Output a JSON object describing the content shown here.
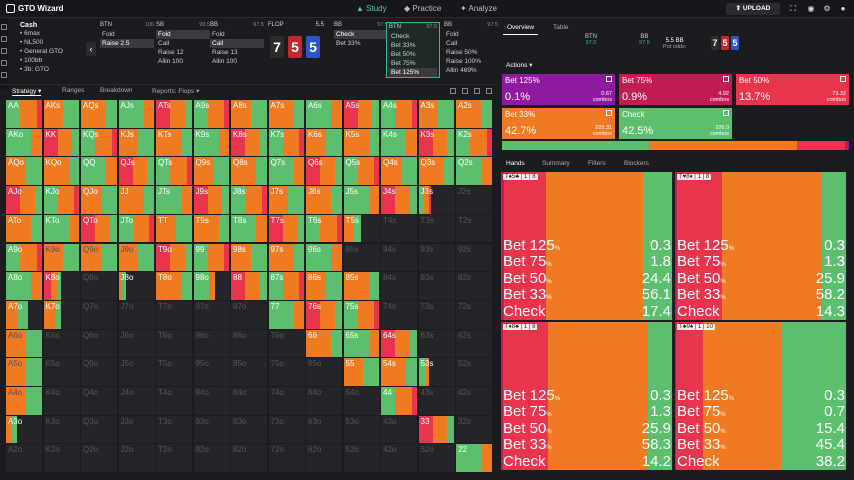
{
  "app": {
    "title": "GTO Wizard",
    "upload_label": "UPLOAD"
  },
  "nav": {
    "study": "Study",
    "practice": "Practice",
    "analyze": "Analyze"
  },
  "context": {
    "title": "Cash",
    "items": [
      "6max",
      "NL500",
      "General GTO",
      "100bb",
      "3b: GTO"
    ]
  },
  "action_cols": [
    {
      "pos": "BTN",
      "num": "100",
      "items": [
        "Fold",
        "Raise 2.5"
      ],
      "sel": 1
    },
    {
      "pos": "SB",
      "num": "99.5",
      "items": [
        "Fold",
        "Call",
        "Raise 12",
        "Allin 100"
      ],
      "sel": 0
    },
    {
      "pos": "BB",
      "num": "97.5",
      "items": [
        "Fold",
        "Call",
        "Raise 13",
        "Allin 100"
      ],
      "sel": 1
    },
    {
      "pos": "BB",
      "num": "97.5",
      "items": [
        "Check",
        "Bet 33%"
      ],
      "sel": 0
    },
    {
      "pos": "BTN",
      "num": "97.5",
      "items": [
        "Check",
        "Bet 33%",
        "Bet 50%",
        "Bet 75%",
        "Bet 125%"
      ],
      "sel": 4
    },
    {
      "pos": "BB",
      "num": "97.5",
      "items": [
        "Fold",
        "Call",
        "Raise 50%",
        "Raise 100%",
        "Allin 469%"
      ],
      "sel": -1
    }
  ],
  "flop": {
    "label": "FLOP",
    "num": "5.5",
    "cards": [
      {
        "r": "7",
        "c": "#2c2c2c"
      },
      {
        "r": "5",
        "c": "#c0282e"
      },
      {
        "r": "5",
        "c": "#2d54c8"
      }
    ]
  },
  "subtabs": [
    "Strategy",
    "Ranges",
    "Breakdown",
    "Reports: Flops"
  ],
  "grid_rows": [
    [
      "AA",
      "AKs",
      "AQs",
      "AJs",
      "ATs",
      "A9s",
      "A8s",
      "A7s",
      "A6s",
      "A5s",
      "A4s",
      "A3s",
      "A2s"
    ],
    [
      "AKo",
      "KK",
      "KQs",
      "KJs",
      "KTs",
      "K9s",
      "K8s",
      "K7s",
      "K6s",
      "K5s",
      "K4s",
      "K3s",
      "K2s"
    ],
    [
      "AQo",
      "KQo",
      "QQ",
      "QJs",
      "QTs",
      "Q9s",
      "Q8s",
      "Q7s",
      "Q6s",
      "Q5s",
      "Q4s",
      "Q3s",
      "Q2s"
    ],
    [
      "AJo",
      "KJo",
      "QJo",
      "JJ",
      "JTs",
      "J9s",
      "J8s",
      "J7s",
      "J6s",
      "J5s",
      "J4s",
      "J3s",
      "J2s"
    ],
    [
      "ATo",
      "KTo",
      "QTo",
      "JTo",
      "TT",
      "T9s",
      "T8s",
      "T7s",
      "T6s",
      "T5s",
      "T4s",
      "T3s",
      "T2s"
    ],
    [
      "A9o",
      "K9o",
      "Q9o",
      "J9o",
      "T9o",
      "99",
      "98s",
      "97s",
      "96s",
      "95s",
      "94s",
      "93s",
      "92s"
    ],
    [
      "A8o",
      "K8o",
      "Q8o",
      "J8o",
      "T8o",
      "98o",
      "88",
      "87s",
      "86s",
      "85s",
      "84s",
      "83s",
      "82s"
    ],
    [
      "A7o",
      "K7o",
      "Q7o",
      "J7o",
      "T7o",
      "97o",
      "87o",
      "77",
      "76s",
      "75s",
      "74s",
      "73s",
      "72s"
    ],
    [
      "A6o",
      "K6o",
      "Q6o",
      "J6o",
      "T6o",
      "96o",
      "86o",
      "76o",
      "66",
      "65s",
      "64s",
      "63s",
      "62s"
    ],
    [
      "A5o",
      "K5o",
      "Q5o",
      "J5o",
      "T5o",
      "95o",
      "85o",
      "75o",
      "65o",
      "55",
      "54s",
      "53s",
      "52s"
    ],
    [
      "A4o",
      "K4o",
      "Q4o",
      "J4o",
      "T4o",
      "94o",
      "84o",
      "74o",
      "64o",
      "54o",
      "44",
      "43s",
      "42s"
    ],
    [
      "A3o",
      "K3o",
      "Q3o",
      "J3o",
      "T3o",
      "93o",
      "83o",
      "73o",
      "63o",
      "53o",
      "43o",
      "33",
      "32s"
    ],
    [
      "A2o",
      "K2o",
      "Q2o",
      "J2o",
      "T2o",
      "92o",
      "82o",
      "72o",
      "62o",
      "52o",
      "42o",
      "32o",
      "22"
    ]
  ],
  "right": {
    "tabs": [
      "Overview",
      "Table"
    ],
    "mini": [
      {
        "t": "BTN",
        "v": "97.5"
      },
      {
        "t": "BB",
        "v": "97.5"
      }
    ],
    "pot": "5.5 BB",
    "pot_odds": "Pot odds:"
  },
  "actions_label": "Actions",
  "action_boxes": [
    {
      "name": "Bet 125%",
      "pct": "0.1%",
      "combos": "0.67",
      "color": "#8e1aa0"
    },
    {
      "name": "Bet 75%",
      "pct": "0.9%",
      "combos": "4.92",
      "color": "#c21c55"
    },
    {
      "name": "Bet 50%",
      "pct": "13.7%",
      "combos": "73.32",
      "color": "#e8344d"
    },
    {
      "name": "Bet 33%",
      "pct": "42.7%",
      "combos": "228.31",
      "color": "#f07a22"
    },
    {
      "name": "Check",
      "pct": "42.5%",
      "combos": "226.9",
      "color": "#5cbf6e"
    }
  ],
  "combos_word": "combos",
  "hand_tabs": [
    "Hands",
    "Summary",
    "Filters",
    "Blockers"
  ],
  "hand_panels": [
    {
      "hand": "T♠5♣ | 1 | 8",
      "rows": [
        [
          "Bet 125",
          "0.3"
        ],
        [
          "Bet 75",
          "1.8"
        ],
        [
          "Bet 50",
          "24.4"
        ],
        [
          "Bet 33",
          "56.1"
        ],
        [
          "Check",
          "17.4"
        ]
      ],
      "w": [
        0,
        1.8,
        24.4,
        56.1,
        17.4
      ]
    },
    {
      "hand": "T♥8♦ | 1 | 8",
      "rows": [
        [
          "Bet 125",
          "0.3"
        ],
        [
          "Bet 75",
          "1.3"
        ],
        [
          "Bet 50",
          "25.9"
        ],
        [
          "Bet 33",
          "58.2"
        ],
        [
          "Check",
          "14.3"
        ]
      ],
      "w": [
        0,
        1.3,
        25.9,
        58.2,
        14.3
      ]
    },
    {
      "hand": "T♦8♣ | 1 | 8",
      "rows": [
        [
          "Bet 125",
          "0.3"
        ],
        [
          "Bet 75",
          "1.3"
        ],
        [
          "Bet 50",
          "25.9"
        ],
        [
          "Bet 33",
          "58.3"
        ],
        [
          "Check",
          "14.2"
        ]
      ],
      "w": [
        0,
        1.3,
        25.9,
        58.3,
        14.2
      ]
    },
    {
      "hand": "T♣9♠ | 1 | 10",
      "rows": [
        [
          "Bet 125",
          "0.3"
        ],
        [
          "Bet 75",
          "0.7"
        ],
        [
          "Bet 50",
          "15.4"
        ],
        [
          "Bet 33",
          "45.4"
        ],
        [
          "Check",
          "38.2"
        ]
      ],
      "w": [
        0,
        0.7,
        15.4,
        45.4,
        38.2
      ]
    }
  ],
  "pct_sign": "%",
  "colors": {
    "check": "#5cbf6e",
    "b33": "#f07a22",
    "b50": "#e8344d",
    "b75": "#c21c55",
    "b125": "#8e1aa0",
    "teal": "#2fb59a"
  }
}
